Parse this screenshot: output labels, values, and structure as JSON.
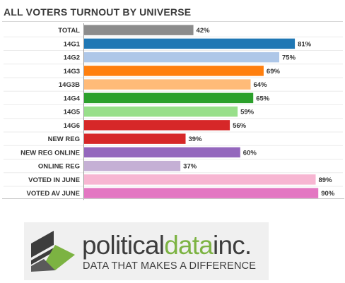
{
  "chart_data": {
    "type": "bar",
    "orientation": "horizontal",
    "title": "ALL VOTERS TURNOUT BY UNIVERSE",
    "categories": [
      "TOTAL",
      "14G1",
      "14G2",
      "14G3",
      "14G3B",
      "14G4",
      "14G5",
      "14G6",
      "NEW REG",
      "NEW REG ONLINE",
      "ONLINE REG",
      "VOTED IN JUNE",
      "VOTED AV JUNE"
    ],
    "values": [
      42,
      81,
      75,
      69,
      64,
      65,
      59,
      56,
      39,
      60,
      37,
      89,
      90
    ],
    "value_labels": [
      "42%",
      "81%",
      "75%",
      "69%",
      "64%",
      "65%",
      "59%",
      "56%",
      "39%",
      "60%",
      "37%",
      "89%",
      "90%"
    ],
    "colors": [
      "#8c8c8c",
      "#1f77b4",
      "#aec7e8",
      "#ff7f0e",
      "#ffbb78",
      "#2ca02c",
      "#98df8a",
      "#d62728",
      "#d62728",
      "#9467bd",
      "#c5b0d5",
      "#f7b6d2",
      "#e377c2"
    ],
    "xlim": [
      0,
      100
    ],
    "grid": false,
    "legend": "none"
  },
  "logo": {
    "word_part1": "political",
    "word_part2": "data",
    "word_part3": "inc.",
    "tagline": "DATA THAT MAKES A DIFFERENCE",
    "accent_color": "#7cb342",
    "dark_color": "#3d3d3d"
  }
}
